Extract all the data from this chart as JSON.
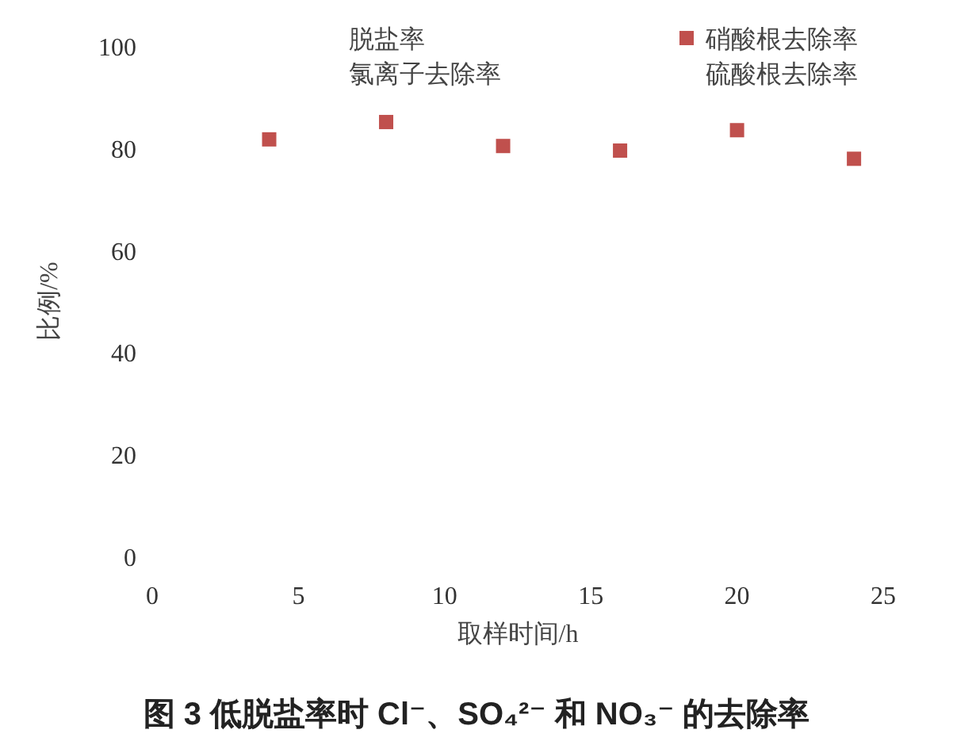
{
  "chart_data": {
    "type": "scatter",
    "title": "图 3 低脱盐率时 Cl⁻、SO₄²⁻ 和 NO₃⁻ 的去除率",
    "xlabel": "取样时间/h",
    "ylabel": "比例/%",
    "x": [
      4,
      8,
      12,
      16,
      20,
      24
    ],
    "series": [
      {
        "name": "脱盐率",
        "values": [
          null,
          null,
          null,
          null,
          null,
          null
        ]
      },
      {
        "name": "硝酸根去除率",
        "color": "#c0504d",
        "values": [
          81.7,
          85.1,
          80.4,
          79.5,
          83.5,
          77.9
        ]
      },
      {
        "name": "氯离子去除率",
        "values": [
          null,
          null,
          null,
          null,
          null,
          null
        ]
      },
      {
        "name": "硫酸根去除率",
        "values": [
          null,
          null,
          null,
          null,
          null,
          null
        ]
      }
    ],
    "xlim": [
      0,
      25
    ],
    "xticks": [
      0,
      5,
      10,
      15,
      20,
      25
    ],
    "ylim": [
      0,
      100
    ],
    "yticks": [
      0,
      20,
      40,
      60,
      80,
      100
    ],
    "marker": "square",
    "legend": "top",
    "grid": false
  }
}
